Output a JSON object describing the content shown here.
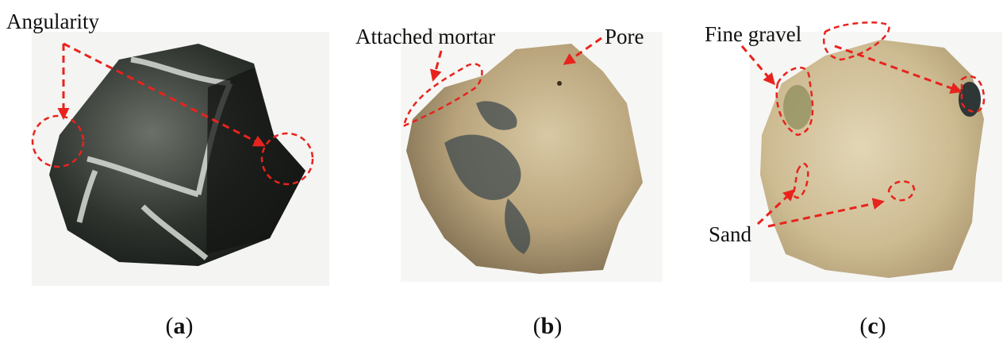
{
  "panels": [
    {
      "caption": "(a)",
      "annotations": [
        "Angularity"
      ]
    },
    {
      "caption": "(b)",
      "annotations": [
        "Attached mortar",
        "Pore"
      ]
    },
    {
      "caption": "(c)",
      "annotations": [
        "Fine gravel",
        "Sand"
      ]
    }
  ]
}
